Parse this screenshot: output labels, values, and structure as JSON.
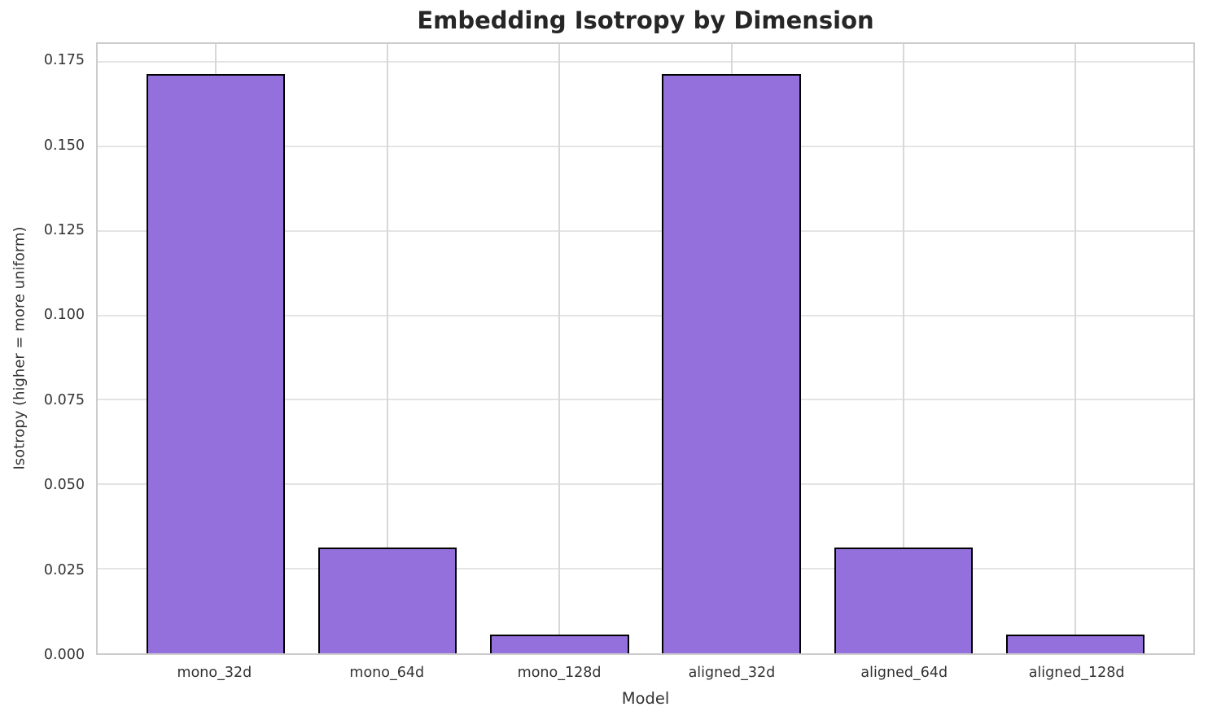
{
  "chart_data": {
    "type": "bar",
    "title": "Embedding Isotropy by Dimension",
    "xlabel": "Model",
    "ylabel": "Isotropy (higher = more uniform)",
    "categories": [
      "mono_32d",
      "mono_64d",
      "mono_128d",
      "aligned_32d",
      "aligned_64d",
      "aligned_128d"
    ],
    "values": [
      0.1715,
      0.0314,
      0.0055,
      0.1715,
      0.0314,
      0.0055
    ],
    "ylim": [
      0,
      0.1803
    ],
    "yticks": [
      0,
      0.025,
      0.05,
      0.075,
      0.1,
      0.125,
      0.15,
      0.175
    ],
    "ytick_labels": [
      "0.000",
      "0.025",
      "0.050",
      "0.075",
      "0.100",
      "0.125",
      "0.150",
      "0.175"
    ],
    "grid": true,
    "legend_position": "none",
    "bar_width_ratio": 0.8,
    "colors": {
      "bar_fill": "#9370DB",
      "bar_edge": "#000000",
      "grid_horizontal": "#e4e4e4",
      "grid_vertical": "#d8d8d8",
      "spine": "#cccccc",
      "title_text": "#262626",
      "label_text": "#333333",
      "background": "#ffffff"
    }
  }
}
